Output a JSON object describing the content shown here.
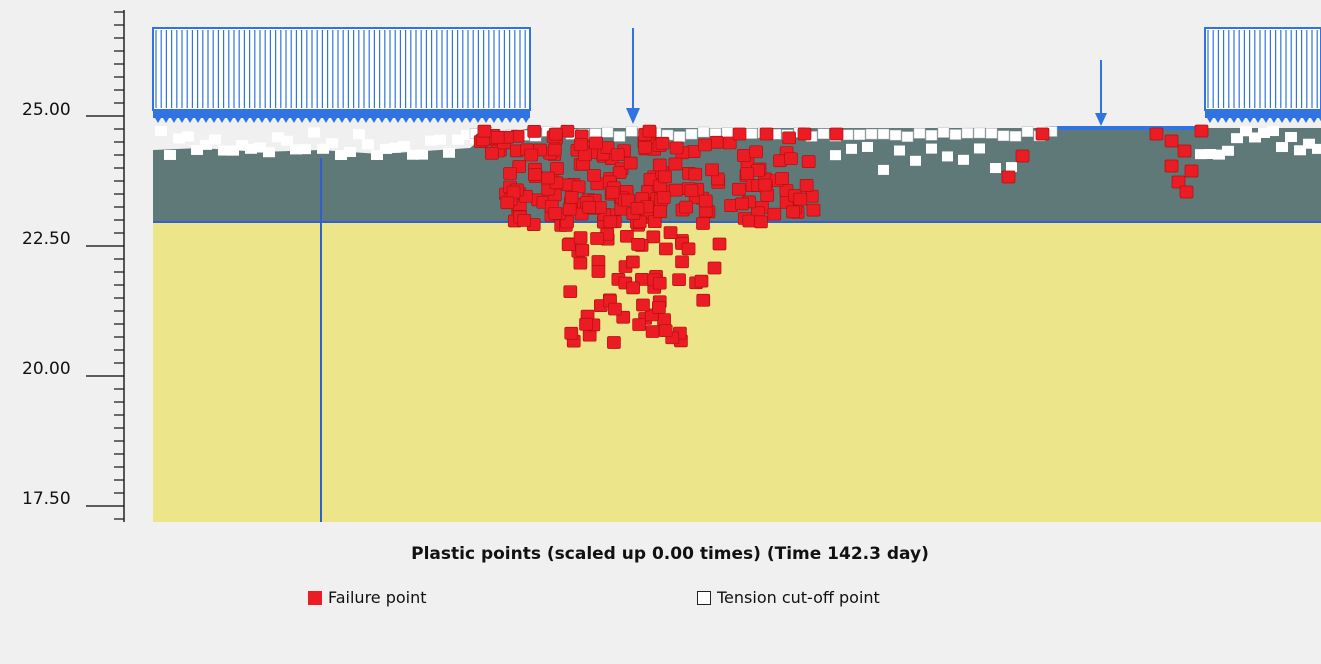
{
  "colors": {
    "background": "#f0f0f0",
    "soil_top": "#5f7878",
    "soil_bottom": "#ede58a",
    "boundary_line": "#2f5fd0",
    "load": "#2f74e0",
    "failure": "#ec1c24",
    "tension": "#ffffff"
  },
  "axis": {
    "ticks": [
      "25.00",
      "22.50",
      "20.00",
      "17.50"
    ]
  },
  "caption": "Plastic points (scaled up 0.00 times) (Time 142.3 day)",
  "legend": {
    "failure_label": "Failure point",
    "tension_label": "Tension cut-off point"
  }
}
